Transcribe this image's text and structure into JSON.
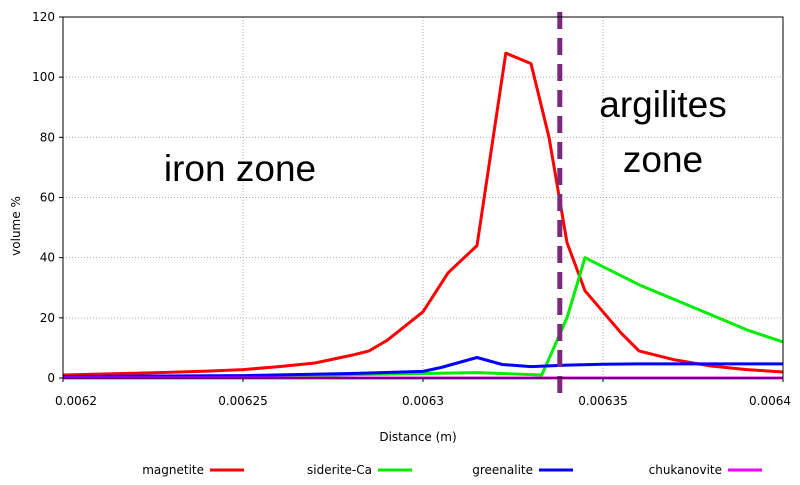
{
  "chart_data": {
    "type": "line",
    "title": "",
    "xlabel": "Distance (m)",
    "ylabel": "volume %",
    "xlim": [
      0.0062,
      0.0064
    ],
    "ylim": [
      0,
      120
    ],
    "xticks": [
      "0.0062",
      "0.00625",
      "0.0063",
      "0.00635",
      "0.0064"
    ],
    "yticks": [
      "0",
      "20",
      "40",
      "60",
      "80",
      "100",
      "120"
    ],
    "grid": true,
    "legend_position": "bottom",
    "series": [
      {
        "name": "magnetite",
        "color": "#ff0000",
        "x": [
          0.0062,
          0.00621,
          0.00622,
          0.00623,
          0.00624,
          0.00625,
          0.00626,
          0.00627,
          0.00628,
          0.006285,
          0.00629,
          0.0063,
          0.006307,
          0.006315,
          0.006323,
          0.00633,
          0.006335,
          0.00634,
          0.006345,
          0.00635,
          0.006355,
          0.00636,
          0.00637,
          0.00638,
          0.00639,
          0.0064
        ],
        "y": [
          1,
          1.3,
          1.6,
          1.9,
          2.3,
          2.8,
          3.8,
          5,
          7.5,
          9,
          12.5,
          22,
          35,
          44,
          108,
          104.5,
          80,
          45,
          29,
          22,
          15,
          9,
          6,
          4,
          2.8,
          2
        ]
      },
      {
        "name": "siderite-Ca",
        "color": "#00ee00",
        "x": [
          0.0062,
          0.00625,
          0.0063,
          0.006315,
          0.006333,
          0.00634,
          0.006345,
          0.00635,
          0.00636,
          0.00637,
          0.00638,
          0.00639,
          0.0064
        ],
        "y": [
          0.3,
          0.5,
          1.5,
          1.8,
          1,
          20,
          40,
          37,
          31,
          26,
          21,
          16,
          12
        ]
      },
      {
        "name": "greenalite",
        "color": "#0000ff",
        "x": [
          0.0062,
          0.00625,
          0.00628,
          0.0063,
          0.006305,
          0.006315,
          0.006322,
          0.00633,
          0.00634,
          0.00635,
          0.00636,
          0.0064
        ],
        "y": [
          0.5,
          0.8,
          1.5,
          2.2,
          3.5,
          6.8,
          4.5,
          3.8,
          4.3,
          4.6,
          4.7,
          4.7
        ]
      },
      {
        "name": "chukanovite",
        "color": "#ff00ff",
        "x": [
          0.0062,
          0.0064
        ],
        "y": [
          0,
          0
        ]
      }
    ],
    "boundary": {
      "x": 0.006338,
      "color": "#7b2a7b"
    },
    "annotations": {
      "left_zone": "iron zone",
      "right_zone_line1": "argilites",
      "right_zone_line2": "zone"
    }
  }
}
